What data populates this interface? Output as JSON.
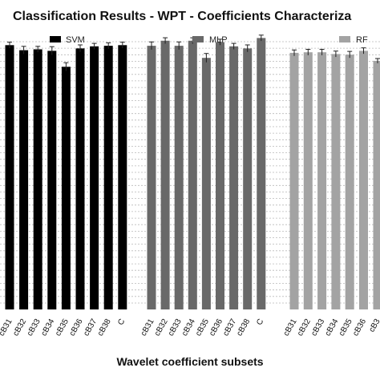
{
  "chart_data": {
    "type": "bar",
    "title": "Classification Results  - WPT - Coefficients Characteriza",
    "xlabel": "Wavelet coefficient subsets",
    "ylabel": "",
    "ylim": [
      0,
      1
    ],
    "grid": true,
    "legend_placement": "top, above each group",
    "groups": [
      {
        "name": "SVM",
        "color": "#000000",
        "categories": [
          "cB31",
          "cB32",
          "cB33",
          "cB34",
          "cB35",
          "cB36",
          "cB37",
          "cB38",
          "C"
        ],
        "values": [
          0.891,
          0.874,
          0.877,
          0.872,
          0.818,
          0.88,
          0.887,
          0.889,
          0.891
        ],
        "errors": [
          0.01,
          0.013,
          0.01,
          0.014,
          0.014,
          0.012,
          0.01,
          0.01,
          0.01
        ]
      },
      {
        "name": "MLP",
        "color": "#696969",
        "categories": [
          "cB31",
          "cB32",
          "cB33",
          "cB34",
          "cB35",
          "cB36",
          "cB37",
          "cB38",
          "C"
        ],
        "values": [
          0.889,
          0.906,
          0.889,
          0.906,
          0.848,
          0.901,
          0.887,
          0.88,
          0.915
        ],
        "errors": [
          0.013,
          0.01,
          0.013,
          0.01,
          0.015,
          0.01,
          0.01,
          0.012,
          0.01
        ]
      },
      {
        "name": "RF",
        "color": "#a3a3a3",
        "categories": [
          "cB31",
          "cB32",
          "cB33",
          "cB34",
          "cB35",
          "cB36"
        ],
        "values": [
          0.865,
          0.867,
          0.867,
          0.861,
          0.859,
          0.872
        ],
        "errors": [
          0.01,
          0.01,
          0.01,
          0.01,
          0.011,
          0.01
        ]
      },
      {
        "name": "",
        "color": "#a3a3a3",
        "categories": [
          "cB3"
        ],
        "values": [
          0.838
        ],
        "errors": [
          0.008
        ]
      }
    ]
  }
}
